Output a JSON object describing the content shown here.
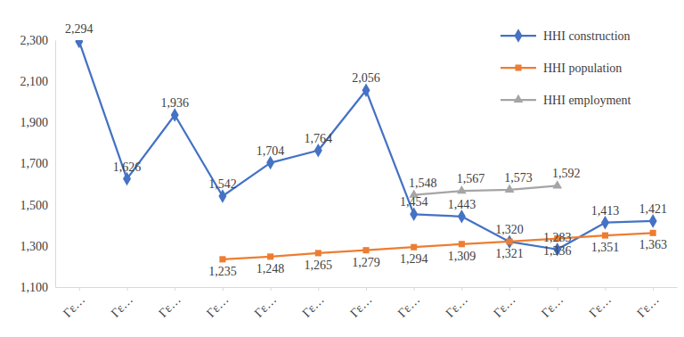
{
  "chart_data": {
    "type": "line",
    "categories": [
      "Γε…",
      "Γε…",
      "Γε…",
      "Γε…",
      "Γε…",
      "Γε…",
      "Γε…",
      "Γε…",
      "Γε…",
      "Γε…",
      "Γε…",
      "Γε…",
      "Γε…"
    ],
    "series": [
      {
        "name": "HHI construction",
        "color": "#4472c4",
        "marker": "diamond",
        "values": [
          2294,
          1626,
          1936,
          1542,
          1704,
          1764,
          2056,
          1454,
          1443,
          1320,
          1283,
          1413,
          1421
        ],
        "value_labels": [
          "2,294",
          "1,626",
          "1,936",
          "1,542",
          "1,704",
          "1,764",
          "2,056",
          "1,454",
          "1,443",
          "1,320",
          "1,283",
          "1,413",
          "1,421"
        ]
      },
      {
        "name": "HHI population",
        "color": "#ed7d31",
        "marker": "square",
        "values": [
          null,
          null,
          null,
          1235,
          1248,
          1265,
          1279,
          1294,
          1309,
          1321,
          1336,
          1351,
          1363
        ],
        "value_labels": [
          null,
          null,
          null,
          "1,235",
          "1,248",
          "1,265",
          "1,279",
          "1,294",
          "1,309",
          "1,321",
          "1,336",
          "1,351",
          "1,363"
        ]
      },
      {
        "name": "HHI employment",
        "color": "#a5a5a5",
        "marker": "triangle",
        "values": [
          null,
          null,
          null,
          null,
          null,
          null,
          null,
          1548,
          1567,
          1573,
          1592,
          null,
          null
        ],
        "value_labels": [
          null,
          null,
          null,
          null,
          null,
          null,
          null,
          "1,548",
          "1,567",
          "1,573",
          "1,592",
          null,
          null
        ]
      }
    ],
    "ylim": [
      1100,
      2300
    ],
    "yticks": [
      {
        "value": 1100,
        "label": "1,100"
      },
      {
        "value": 1300,
        "label": "1,300"
      },
      {
        "value": 1500,
        "label": "1,500"
      },
      {
        "value": 1700,
        "label": "1,700"
      },
      {
        "value": 1900,
        "label": "1,900"
      },
      {
        "value": 2100,
        "label": "2,100"
      },
      {
        "value": 2300,
        "label": "2,300"
      }
    ],
    "grid": false,
    "legend": "top-right",
    "data_labels": true
  }
}
